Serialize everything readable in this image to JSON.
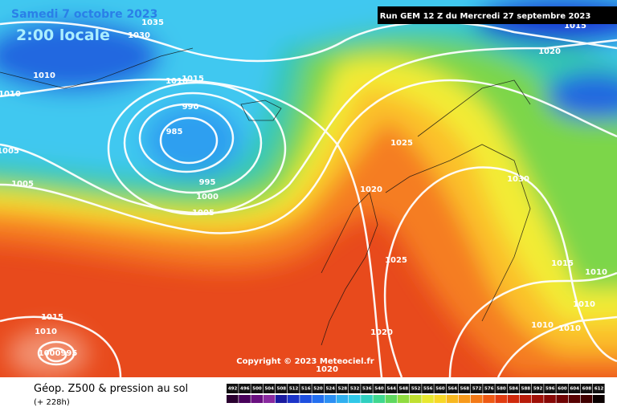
{
  "header": {
    "date": "Samedi 7 octobre 2023",
    "time": "2:00 locale",
    "run": "Run GEM 12 Z du Mercredi 27 septembre 2023"
  },
  "isobar_labels": [
    "1035",
    "1030",
    "1010",
    "1010",
    "1015",
    "1010",
    "990",
    "985",
    "1005",
    "1005",
    "995",
    "1000",
    "1005",
    "1025",
    "1020",
    "1030",
    "1025",
    "1015",
    "1010",
    "1010",
    "1010",
    "1010",
    "1020",
    "1020",
    "1015",
    "1010",
    "1000995",
    "1020",
    "1015"
  ],
  "copyright": "Copyright © 2023 Meteociel.fr",
  "footer": {
    "title": "Géop. Z500 & pression au sol",
    "lead": "(+ 228h)"
  },
  "legend": {
    "labels": [
      492,
      496,
      500,
      504,
      508,
      512,
      516,
      520,
      524,
      528,
      532,
      536,
      540,
      544,
      548,
      552,
      556,
      560,
      564,
      568,
      572,
      576,
      580,
      584,
      588,
      592,
      596,
      600,
      604,
      608,
      612
    ]
  }
}
